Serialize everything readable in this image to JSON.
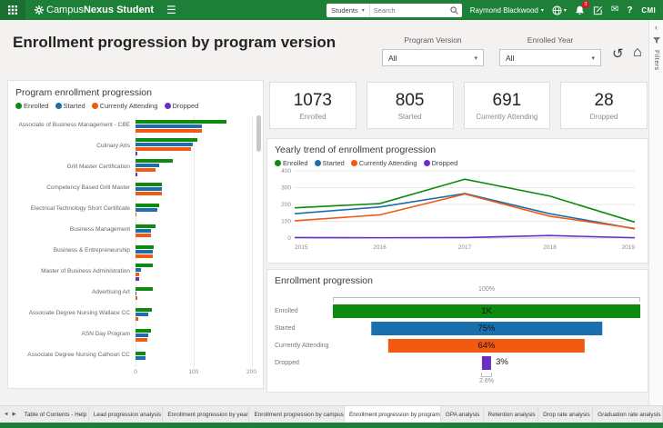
{
  "topbar": {
    "brand_part1": "Campus",
    "brand_part2": "Nexus",
    "brand_product": "Student",
    "scope_value": "Students",
    "search_placeholder": "Search",
    "user_name": "Raymond Blackwood",
    "notification_count": "3",
    "help_label": "?",
    "cmi_label": "CMI"
  },
  "icons": {
    "caret_down": "▾",
    "chevron_left": "‹",
    "hamburger": "☰",
    "undo": "↺",
    "home": "⌂",
    "envelope": "✉",
    "tab_prev": "◄",
    "tab_next": "▶"
  },
  "header": {
    "title": "Enrollment progression by program version",
    "filters": [
      {
        "label": "Program Version",
        "value": "All"
      },
      {
        "label": "Enrolled Year",
        "value": "All"
      }
    ]
  },
  "filters_rail": {
    "label": "Filters"
  },
  "kpis": [
    {
      "value": "1073",
      "label": "Enrolled"
    },
    {
      "value": "805",
      "label": "Started"
    },
    {
      "value": "691",
      "label": "Currently Attending"
    },
    {
      "value": "28",
      "label": "Dropped"
    }
  ],
  "colors": {
    "enrolled": "#0e8a0e",
    "started": "#1b6fad",
    "currently_attending": "#f25a12",
    "dropped": "#6a2fc2",
    "topbar_green": "#1e8038"
  },
  "chart_data": [
    {
      "type": "bar",
      "title": "Program enrollment progression",
      "orientation": "horizontal",
      "xlim": [
        0,
        210
      ],
      "x_ticks": [
        0,
        100,
        200
      ],
      "grid": true,
      "legend_position": "top",
      "categories": [
        "Associate of Business Management - CBE",
        "Culinary Arts",
        "Grill Master Certification",
        "Competency Based Grill Master",
        "Electrical Technology Short Certificate",
        "Business Management",
        "Business & Entrepreneurship",
        "Master of Business Administration",
        "Advertising Art",
        "Associate Degree Nursing Wallace CC",
        "ASN Day Program",
        "Associate Degree Nursing Calhoun CC"
      ],
      "series": [
        {
          "name": "Enrolled",
          "color": "#0e8a0e",
          "values": [
            157,
            106,
            64,
            46,
            40,
            34,
            31,
            29,
            29,
            28,
            26,
            18
          ]
        },
        {
          "name": "Started",
          "color": "#1b6fad",
          "values": [
            115,
            98,
            40,
            45,
            38,
            27,
            29,
            10,
            2,
            22,
            22,
            18
          ]
        },
        {
          "name": "Currently Attending",
          "color": "#f25a12",
          "values": [
            114,
            95,
            35,
            45,
            2,
            27,
            30,
            6,
            3,
            5,
            20,
            0
          ]
        },
        {
          "name": "Dropped",
          "color": "#6a2fc2",
          "values": [
            0,
            3,
            3,
            0,
            0,
            0,
            0,
            6,
            0,
            0,
            0,
            0
          ]
        }
      ]
    },
    {
      "type": "line",
      "title": "Yearly trend of enrollment progression",
      "x": [
        2015,
        2016,
        2017,
        2018,
        2019
      ],
      "ylim": [
        0,
        400
      ],
      "y_ticks": [
        0,
        100,
        200,
        300,
        400
      ],
      "grid": true,
      "legend_position": "top",
      "series": [
        {
          "name": "Enrolled",
          "color": "#0e8a0e",
          "values": [
            180,
            205,
            350,
            250,
            95
          ]
        },
        {
          "name": "Started",
          "color": "#1b6fad",
          "values": [
            145,
            185,
            265,
            145,
            55
          ]
        },
        {
          "name": "Currently Attending",
          "color": "#f25a12",
          "values": [
            103,
            138,
            262,
            130,
            57
          ]
        },
        {
          "name": "Dropped",
          "color": "#6a2fc2",
          "values": [
            3,
            2,
            3,
            15,
            2
          ]
        }
      ]
    },
    {
      "type": "funnel",
      "title": "Enrollment progression",
      "top_label": "100%",
      "bottom_label": "2.6%",
      "stages": [
        {
          "label": "Enrolled",
          "value_label": "1K",
          "percent": 100,
          "color": "#0e8a0e"
        },
        {
          "label": "Started",
          "value_label": "75%",
          "percent": 75,
          "color": "#1b6fad"
        },
        {
          "label": "Currently Attending",
          "value_label": "64%",
          "percent": 64,
          "color": "#f25a12"
        },
        {
          "label": "Dropped",
          "value_label": "3%",
          "percent": 3,
          "color": "#6a2fc2"
        }
      ]
    }
  ],
  "footer": {
    "tabs": [
      {
        "label": "Table of Contents - Help",
        "active": false
      },
      {
        "label": "Lead progression analysis",
        "active": false
      },
      {
        "label": "Enrollment progression by year",
        "active": false
      },
      {
        "label": "Enrollment progression by campus",
        "active": false
      },
      {
        "label": "Enrollment progression by program",
        "active": true
      },
      {
        "label": "GPA analysis",
        "active": false
      },
      {
        "label": "Retention analysis",
        "active": false
      },
      {
        "label": "Drop rate analysis",
        "active": false
      },
      {
        "label": "Graduation rate analysis",
        "active": false
      }
    ]
  }
}
